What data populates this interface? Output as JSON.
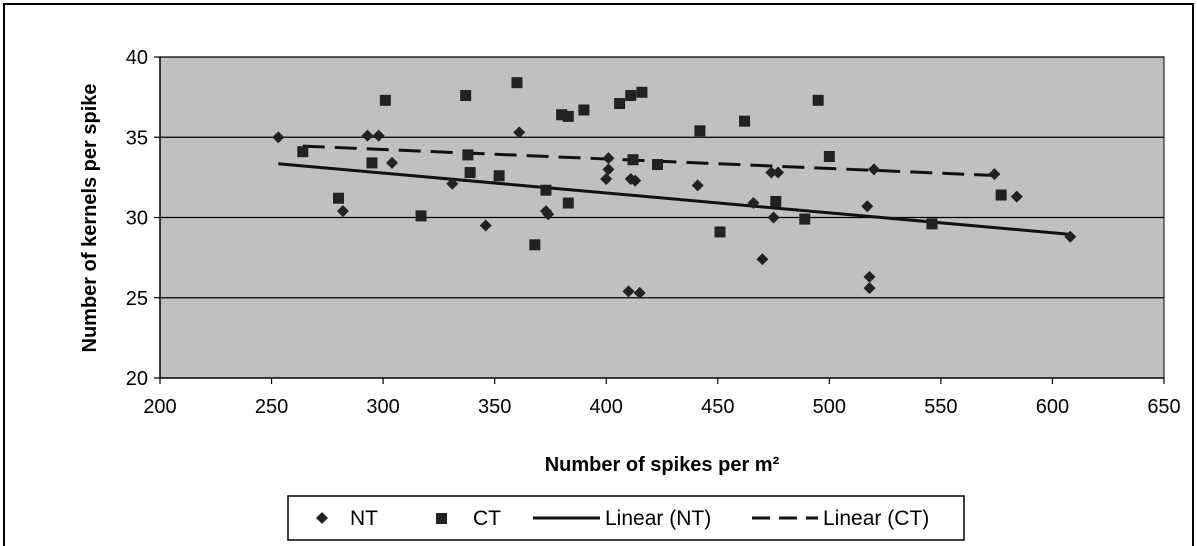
{
  "chart_data": {
    "type": "scatter",
    "title": "",
    "xlabel": "Number of spikes per m²",
    "ylabel": "Number of kernels per spike",
    "xlim": [
      200,
      650
    ],
    "ylim": [
      20,
      40
    ],
    "x_ticks": [
      200,
      250,
      300,
      350,
      400,
      450,
      500,
      550,
      600,
      650
    ],
    "y_ticks": [
      20,
      25,
      30,
      35,
      40
    ],
    "grid": "horizontal major gridlines",
    "plot_background": "#c0c0c0",
    "legend_position": "bottom",
    "series": [
      {
        "name": "NT",
        "marker": "diamond",
        "color": "#222222",
        "points": [
          [
            253,
            35.0
          ],
          [
            282,
            30.4
          ],
          [
            293,
            35.1
          ],
          [
            298,
            35.1
          ],
          [
            304,
            33.4
          ],
          [
            331,
            32.1
          ],
          [
            346,
            29.5
          ],
          [
            361,
            35.3
          ],
          [
            373,
            30.4
          ],
          [
            374,
            30.2
          ],
          [
            400,
            32.4
          ],
          [
            401,
            33.0
          ],
          [
            401,
            33.7
          ],
          [
            410,
            25.4
          ],
          [
            411,
            32.4
          ],
          [
            413,
            32.3
          ],
          [
            415,
            25.3
          ],
          [
            441,
            32.0
          ],
          [
            466,
            30.9
          ],
          [
            470,
            27.4
          ],
          [
            474,
            32.8
          ],
          [
            475,
            30.0
          ],
          [
            477,
            32.8
          ],
          [
            517,
            30.7
          ],
          [
            518,
            26.3
          ],
          [
            518,
            25.6
          ],
          [
            520,
            33.0
          ],
          [
            574,
            32.7
          ],
          [
            584,
            31.3
          ],
          [
            608,
            28.8
          ]
        ]
      },
      {
        "name": "CT",
        "marker": "square",
        "color": "#222222",
        "points": [
          [
            264,
            34.1
          ],
          [
            280,
            31.2
          ],
          [
            295,
            33.4
          ],
          [
            301,
            37.3
          ],
          [
            317,
            30.1
          ],
          [
            337,
            37.6
          ],
          [
            338,
            33.9
          ],
          [
            339,
            32.8
          ],
          [
            352,
            32.6
          ],
          [
            360,
            38.4
          ],
          [
            368,
            28.3
          ],
          [
            373,
            31.7
          ],
          [
            380,
            36.4
          ],
          [
            383,
            30.9
          ],
          [
            383,
            36.3
          ],
          [
            390,
            36.7
          ],
          [
            406,
            37.1
          ],
          [
            411,
            37.6
          ],
          [
            412,
            33.6
          ],
          [
            416,
            37.8
          ],
          [
            423,
            33.3
          ],
          [
            442,
            35.4
          ],
          [
            451,
            29.1
          ],
          [
            462,
            36.0
          ],
          [
            476,
            31.0
          ],
          [
            489,
            29.9
          ],
          [
            495,
            37.3
          ],
          [
            500,
            33.8
          ],
          [
            546,
            29.6
          ],
          [
            577,
            31.4
          ]
        ]
      },
      {
        "name": "Linear (NT)",
        "type": "line",
        "style": "solid",
        "color": "#111111",
        "points": [
          [
            253,
            33.35
          ],
          [
            608,
            28.95
          ]
        ]
      },
      {
        "name": "Linear (CT)",
        "type": "line",
        "style": "dashed",
        "color": "#111111",
        "points": [
          [
            264,
            34.45
          ],
          [
            577,
            32.6
          ]
        ]
      }
    ]
  }
}
